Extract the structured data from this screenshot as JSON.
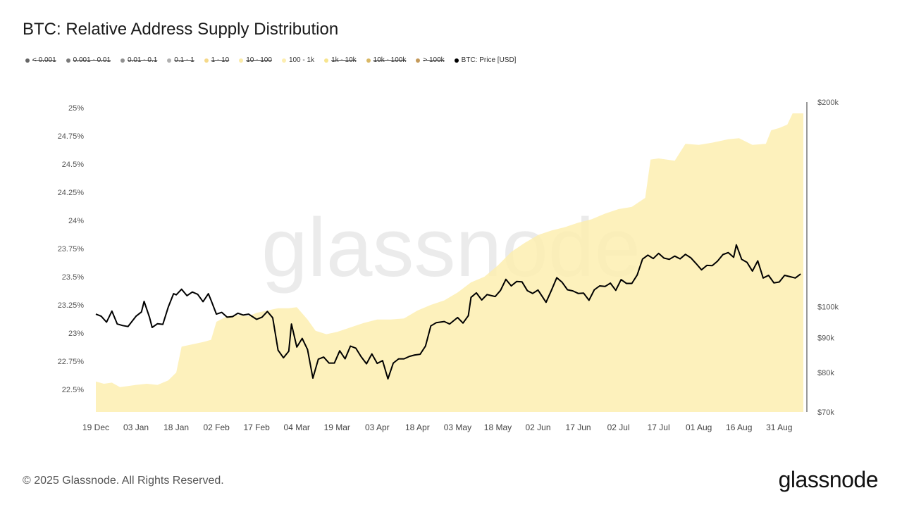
{
  "title": "BTC: Relative Address Supply Distribution",
  "legend": [
    {
      "label": "< 0.001",
      "color": "#666666",
      "active": false
    },
    {
      "label": "0.001 - 0.01",
      "color": "#7a7a7a",
      "active": false
    },
    {
      "label": "0.01 - 0.1",
      "color": "#909090",
      "active": false
    },
    {
      "label": "0.1 - 1",
      "color": "#b0b0b0",
      "active": false
    },
    {
      "label": "1 - 10",
      "color": "#f5d98a",
      "active": false
    },
    {
      "label": "10 - 100",
      "color": "#faeaa8",
      "active": false
    },
    {
      "label": "100 - 1k",
      "color": "#fdeeb0",
      "active": true
    },
    {
      "label": "1k - 10k",
      "color": "#f7e58f",
      "active": false
    },
    {
      "label": "10k - 100k",
      "color": "#d9b866",
      "active": false
    },
    {
      "label": "> 100k",
      "color": "#c49a5a",
      "active": false
    },
    {
      "label": "BTC: Price [USD]",
      "color": "#000000",
      "active": true
    }
  ],
  "watermark": "glassnode",
  "footer": "© 2025 Glassnode. All Rights Reserved.",
  "brand": "glassnode",
  "colors": {
    "area": "#fdeeb0",
    "price": "#000000",
    "axis_text": "#555555"
  },
  "chart_data": {
    "type": "area",
    "x_tick_labels": [
      "19 Dec",
      "03 Jan",
      "18 Jan",
      "02 Feb",
      "17 Feb",
      "04 Mar",
      "19 Mar",
      "03 Apr",
      "18 Apr",
      "03 May",
      "18 May",
      "02 Jun",
      "17 Jun",
      "02 Jul",
      "17 Jul",
      "01 Aug",
      "16 Aug",
      "31 Aug"
    ],
    "y_left": {
      "ticks": [
        "22.5%",
        "22.75%",
        "23%",
        "23.25%",
        "23.5%",
        "23.75%",
        "24%",
        "24.25%",
        "24.5%",
        "24.75%",
        "25%"
      ],
      "range": [
        22.3,
        25.05
      ]
    },
    "y_right": {
      "ticks": [
        "$70k",
        "$80k",
        "$90k",
        "$100k",
        "$200k"
      ],
      "scale": "log",
      "range": [
        70000,
        200000
      ]
    },
    "series": [
      {
        "name": "100 - 1k",
        "axis": "left",
        "points": [
          [
            "19 Dec",
            22.57
          ],
          [
            "22 Dec",
            22.55
          ],
          [
            "25 Dec",
            22.56
          ],
          [
            "28 Dec",
            22.52
          ],
          [
            "31 Dec",
            22.53
          ],
          [
            "03 Jan",
            22.54
          ],
          [
            "07 Jan",
            22.55
          ],
          [
            "11 Jan",
            22.54
          ],
          [
            "15 Jan",
            22.58
          ],
          [
            "18 Jan",
            22.65
          ],
          [
            "20 Jan",
            22.88
          ],
          [
            "24 Jan",
            22.9
          ],
          [
            "28 Jan",
            22.92
          ],
          [
            "31 Jan",
            22.94
          ],
          [
            "02 Feb",
            23.1
          ],
          [
            "06 Feb",
            23.15
          ],
          [
            "10 Feb",
            23.16
          ],
          [
            "14 Feb",
            23.15
          ],
          [
            "17 Feb",
            23.18
          ],
          [
            "21 Feb",
            23.2
          ],
          [
            "25 Feb",
            23.22
          ],
          [
            "01 Mar",
            23.22
          ],
          [
            "04 Mar",
            23.23
          ],
          [
            "08 Mar",
            23.12
          ],
          [
            "11 Mar",
            23.02
          ],
          [
            "15 Mar",
            22.99
          ],
          [
            "19 Mar",
            23.01
          ],
          [
            "24 Mar",
            23.05
          ],
          [
            "29 Mar",
            23.09
          ],
          [
            "03 Apr",
            23.12
          ],
          [
            "08 Apr",
            23.12
          ],
          [
            "13 Apr",
            23.13
          ],
          [
            "18 Apr",
            23.2
          ],
          [
            "23 Apr",
            23.25
          ],
          [
            "28 Apr",
            23.29
          ],
          [
            "03 May",
            23.36
          ],
          [
            "08 May",
            23.45
          ],
          [
            "13 May",
            23.5
          ],
          [
            "18 May",
            23.6
          ],
          [
            "23 May",
            23.72
          ],
          [
            "28 May",
            23.8
          ],
          [
            "02 Jun",
            23.87
          ],
          [
            "07 Jun",
            23.91
          ],
          [
            "12 Jun",
            23.94
          ],
          [
            "17 Jun",
            23.98
          ],
          [
            "22 Jun",
            24.01
          ],
          [
            "27 Jun",
            24.06
          ],
          [
            "02 Jul",
            24.1
          ],
          [
            "07 Jul",
            24.12
          ],
          [
            "12 Jul",
            24.2
          ],
          [
            "14 Jul",
            24.54
          ],
          [
            "17 Jul",
            24.55
          ],
          [
            "23 Jul",
            24.53
          ],
          [
            "27 Jul",
            24.68
          ],
          [
            "01 Aug",
            24.67
          ],
          [
            "06 Aug",
            24.69
          ],
          [
            "12 Aug",
            24.72
          ],
          [
            "16 Aug",
            24.73
          ],
          [
            "21 Aug",
            24.67
          ],
          [
            "26 Aug",
            24.68
          ],
          [
            "28 Aug",
            24.8
          ],
          [
            "31 Aug",
            24.82
          ],
          [
            "03 Sep",
            24.85
          ],
          [
            "05 Sep",
            24.95
          ],
          [
            "09 Sep",
            24.95
          ]
        ]
      },
      {
        "name": "BTC: Price [USD]",
        "axis": "right",
        "points": [
          [
            "19 Dec",
            97500
          ],
          [
            "21 Dec",
            96800
          ],
          [
            "23 Dec",
            94900
          ],
          [
            "25 Dec",
            98500
          ],
          [
            "27 Dec",
            94300
          ],
          [
            "29 Dec",
            93800
          ],
          [
            "31 Dec",
            93500
          ],
          [
            "03 Jan",
            96800
          ],
          [
            "05 Jan",
            98200
          ],
          [
            "06 Jan",
            101800
          ],
          [
            "08 Jan",
            96500
          ],
          [
            "09 Jan",
            93200
          ],
          [
            "11 Jan",
            94400
          ],
          [
            "13 Jan",
            94200
          ],
          [
            "15 Jan",
            99800
          ],
          [
            "17 Jan",
            104500
          ],
          [
            "18 Jan",
            104100
          ],
          [
            "20 Jan",
            106100
          ],
          [
            "22 Jan",
            103800
          ],
          [
            "24 Jan",
            105100
          ],
          [
            "26 Jan",
            104300
          ],
          [
            "28 Jan",
            101700
          ],
          [
            "30 Jan",
            104500
          ],
          [
            "31 Jan",
            102200
          ],
          [
            "02 Feb",
            97500
          ],
          [
            "04 Feb",
            98100
          ],
          [
            "06 Feb",
            96500
          ],
          [
            "08 Feb",
            96700
          ],
          [
            "10 Feb",
            97800
          ],
          [
            "12 Feb",
            97200
          ],
          [
            "14 Feb",
            97500
          ],
          [
            "17 Feb",
            95800
          ],
          [
            "19 Feb",
            96500
          ],
          [
            "21 Feb",
            98400
          ],
          [
            "23 Feb",
            96300
          ],
          [
            "25 Feb",
            86300
          ],
          [
            "27 Feb",
            84100
          ],
          [
            "01 Mar",
            86000
          ],
          [
            "02 Mar",
            94300
          ],
          [
            "04 Mar",
            87200
          ],
          [
            "06 Mar",
            89800
          ],
          [
            "08 Mar",
            86500
          ],
          [
            "10 Mar",
            78500
          ],
          [
            "12 Mar",
            83700
          ],
          [
            "14 Mar",
            84300
          ],
          [
            "16 Mar",
            82600
          ],
          [
            "18 Mar",
            82600
          ],
          [
            "20 Mar",
            86100
          ],
          [
            "22 Mar",
            83800
          ],
          [
            "24 Mar",
            87500
          ],
          [
            "26 Mar",
            86900
          ],
          [
            "28 Mar",
            84400
          ],
          [
            "30 Mar",
            82400
          ],
          [
            "01 Apr",
            85200
          ],
          [
            "03 Apr",
            82500
          ],
          [
            "05 Apr",
            83300
          ],
          [
            "07 Apr",
            78300
          ],
          [
            "09 Apr",
            82600
          ],
          [
            "11 Apr",
            83800
          ],
          [
            "13 Apr",
            83800
          ],
          [
            "15 Apr",
            84500
          ],
          [
            "17 Apr",
            84900
          ],
          [
            "19 Apr",
            85100
          ],
          [
            "21 Apr",
            87500
          ],
          [
            "23 Apr",
            93700
          ],
          [
            "25 Apr",
            94700
          ],
          [
            "28 Apr",
            95100
          ],
          [
            "30 Apr",
            94300
          ],
          [
            "03 May",
            96400
          ],
          [
            "05 May",
            94600
          ],
          [
            "07 May",
            97000
          ],
          [
            "08 May",
            103200
          ],
          [
            "10 May",
            104800
          ],
          [
            "12 May",
            102300
          ],
          [
            "14 May",
            104200
          ],
          [
            "17 May",
            103500
          ],
          [
            "19 May",
            105700
          ],
          [
            "21 May",
            109700
          ],
          [
            "23 May",
            107300
          ],
          [
            "25 May",
            108900
          ],
          [
            "27 May",
            108800
          ],
          [
            "29 May",
            105600
          ],
          [
            "31 May",
            104600
          ],
          [
            "02 Jun",
            105800
          ],
          [
            "05 Jun",
            101500
          ],
          [
            "07 Jun",
            105700
          ],
          [
            "09 Jun",
            110300
          ],
          [
            "11 Jun",
            108600
          ],
          [
            "13 Jun",
            105900
          ],
          [
            "15 Jun",
            105500
          ],
          [
            "17 Jun",
            104600
          ],
          [
            "19 Jun",
            104700
          ],
          [
            "21 Jun",
            102200
          ],
          [
            "23 Jun",
            105900
          ],
          [
            "25 Jun",
            107300
          ],
          [
            "27 Jun",
            107100
          ],
          [
            "29 Jun",
            108300
          ],
          [
            "01 Jul",
            105700
          ],
          [
            "03 Jul",
            109600
          ],
          [
            "05 Jul",
            108200
          ],
          [
            "07 Jul",
            108200
          ],
          [
            "09 Jul",
            111300
          ],
          [
            "11 Jul",
            117500
          ],
          [
            "13 Jul",
            119100
          ],
          [
            "15 Jul",
            117700
          ],
          [
            "17 Jul",
            119800
          ],
          [
            "19 Jul",
            117900
          ],
          [
            "21 Jul",
            117400
          ],
          [
            "23 Jul",
            118700
          ],
          [
            "25 Jul",
            117600
          ],
          [
            "27 Jul",
            119400
          ],
          [
            "29 Jul",
            118000
          ],
          [
            "31 Jul",
            115700
          ],
          [
            "02 Aug",
            113300
          ],
          [
            "04 Aug",
            115000
          ],
          [
            "06 Aug",
            114900
          ],
          [
            "08 Aug",
            116700
          ],
          [
            "10 Aug",
            119300
          ],
          [
            "12 Aug",
            120100
          ],
          [
            "14 Aug",
            118200
          ],
          [
            "15 Aug",
            123300
          ],
          [
            "17 Aug",
            117400
          ],
          [
            "19 Aug",
            116200
          ],
          [
            "21 Aug",
            112800
          ],
          [
            "23 Aug",
            116800
          ],
          [
            "25 Aug",
            110200
          ],
          [
            "27 Aug",
            111200
          ],
          [
            "29 Aug",
            108400
          ],
          [
            "31 Aug",
            108700
          ],
          [
            "02 Sep",
            111200
          ],
          [
            "04 Sep",
            110700
          ],
          [
            "06 Sep",
            110200
          ],
          [
            "08 Sep",
            111700
          ]
        ]
      }
    ],
    "grid": false,
    "legend_position": "top-left"
  }
}
